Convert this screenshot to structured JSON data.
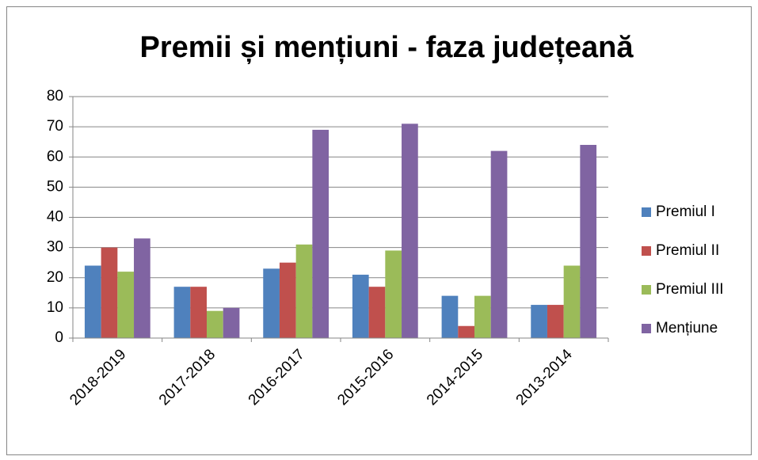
{
  "chart_data": {
    "type": "bar",
    "title": "Premii și mențiuni - faza județeană",
    "categories": [
      "2018-2019",
      "2017-2018",
      "2016-2017",
      "2015-2016",
      "2014-2015",
      "2013-2014"
    ],
    "series": [
      {
        "name": "Premiul I",
        "color": "#4f81bd",
        "values": [
          24,
          17,
          23,
          21,
          14,
          11
        ]
      },
      {
        "name": "Premiul II",
        "color": "#c0504d",
        "values": [
          30,
          17,
          25,
          17,
          4,
          11
        ]
      },
      {
        "name": "Premiul III",
        "color": "#9bbb59",
        "values": [
          22,
          9,
          31,
          29,
          14,
          24
        ]
      },
      {
        "name": "Mențiune",
        "color": "#8064a2",
        "values": [
          33,
          10,
          69,
          71,
          62,
          64
        ]
      }
    ],
    "ylim": [
      0,
      80
    ],
    "yticks": [
      0,
      10,
      20,
      30,
      40,
      50,
      60,
      70,
      80
    ],
    "grid": true,
    "legend": "right"
  }
}
